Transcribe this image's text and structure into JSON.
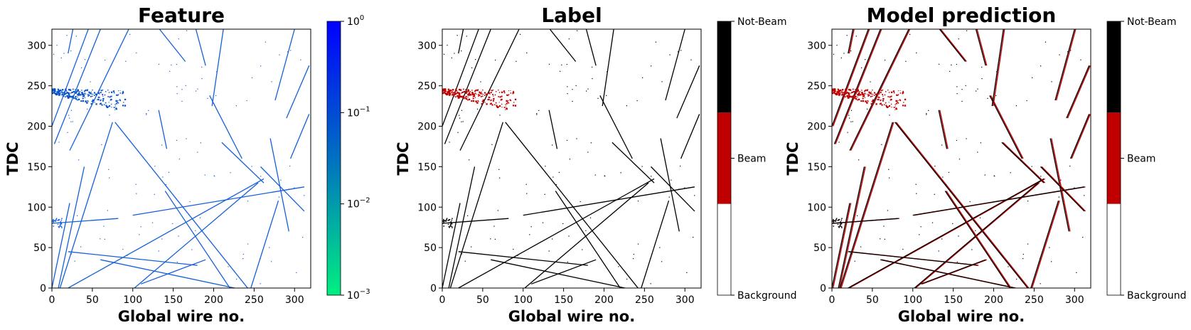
{
  "chart_data": [
    {
      "type": "heatmap",
      "title": "Feature",
      "xlabel": "Global wire no.",
      "ylabel": "TDC",
      "xlim": [
        0,
        320
      ],
      "ylim": [
        0,
        320
      ],
      "xticks": [
        "0",
        "50",
        "100",
        "150",
        "200",
        "250",
        "300"
      ],
      "yticks": [
        "0",
        "50",
        "100",
        "150",
        "200",
        "250",
        "300"
      ],
      "colorbar": {
        "scale": "log",
        "range": [
          0.001,
          1
        ],
        "ticks": [
          {
            "value": 0.001,
            "base": "10",
            "exp": "−3"
          },
          {
            "value": 0.01,
            "base": "10",
            "exp": "−2"
          },
          {
            "value": 0.1,
            "base": "10",
            "exp": "−1"
          },
          {
            "value": 1,
            "base": "10",
            "exp": "0"
          }
        ],
        "colors": [
          "#00f080",
          "#0070c0",
          "#0000ff"
        ]
      }
    },
    {
      "type": "heatmap",
      "title": "Label",
      "xlabel": "Global wire no.",
      "ylabel": "TDC",
      "xlim": [
        0,
        320
      ],
      "ylim": [
        0,
        320
      ],
      "xticks": [
        "0",
        "50",
        "100",
        "150",
        "200",
        "250",
        "300"
      ],
      "yticks": [
        "0",
        "50",
        "100",
        "150",
        "200",
        "250",
        "300"
      ],
      "colorbar": {
        "scale": "categorical",
        "categories": [
          "Background",
          "Beam",
          "Not-Beam"
        ],
        "colors": [
          "#ffffff",
          "#c00000",
          "#000000"
        ]
      }
    },
    {
      "type": "heatmap",
      "title": "Model prediction",
      "xlabel": "Global wire no.",
      "ylabel": "TDC",
      "xlim": [
        0,
        320
      ],
      "ylim": [
        0,
        320
      ],
      "xticks": [
        "0",
        "50",
        "100",
        "150",
        "200",
        "250",
        "300"
      ],
      "yticks": [
        "0",
        "50",
        "100",
        "150",
        "200",
        "250",
        "300"
      ],
      "colorbar": {
        "scale": "categorical",
        "categories": [
          "Background",
          "Beam",
          "Not-Beam"
        ],
        "colors": [
          "#ffffff",
          "#c00000",
          "#000000"
        ]
      }
    }
  ],
  "tracks": [
    [
      [
        0,
        200
      ],
      [
        45,
        320
      ]
    ],
    [
      [
        3,
        178
      ],
      [
        60,
        320
      ]
    ],
    [
      [
        22,
        170
      ],
      [
        95,
        320
      ]
    ],
    [
      [
        8,
        0
      ],
      [
        40,
        150
      ]
    ],
    [
      [
        0,
        0
      ],
      [
        22,
        105
      ]
    ],
    [
      [
        10,
        0
      ],
      [
        75,
        205
      ]
    ],
    [
      [
        78,
        205
      ],
      [
        242,
        0
      ]
    ],
    [
      [
        20,
        0
      ],
      [
        262,
        135
      ]
    ],
    [
      [
        102,
        0
      ],
      [
        255,
        130
      ]
    ],
    [
      [
        100,
        90
      ],
      [
        312,
        125
      ]
    ],
    [
      [
        20,
        45
      ],
      [
        180,
        28
      ]
    ],
    [
      [
        60,
        35
      ],
      [
        226,
        0
      ]
    ],
    [
      [
        110,
        5
      ],
      [
        190,
        35
      ]
    ],
    [
      [
        140,
        120
      ],
      [
        220,
        0
      ]
    ],
    [
      [
        210,
        180
      ],
      [
        262,
        130
      ]
    ],
    [
      [
        178,
        320
      ],
      [
        190,
        275
      ]
    ],
    [
      [
        270,
        185
      ],
      [
        293,
        70
      ]
    ],
    [
      [
        258,
        150
      ],
      [
        312,
        95
      ]
    ],
    [
      [
        195,
        238
      ],
      [
        235,
        160
      ]
    ],
    [
      [
        295,
        160
      ],
      [
        318,
        215
      ]
    ],
    [
      [
        318,
        275
      ],
      [
        290,
        210
      ]
    ],
    [
      [
        212,
        320
      ],
      [
        198,
        225
      ]
    ],
    [
      [
        300,
        320
      ],
      [
        276,
        232
      ]
    ],
    [
      [
        0,
        80
      ],
      [
        82,
        86
      ]
    ],
    [
      [
        132,
        220
      ],
      [
        142,
        172
      ]
    ],
    [
      [
        246,
        0
      ],
      [
        280,
        108
      ]
    ],
    [
      [
        165,
        280
      ],
      [
        125,
        330
      ]
    ],
    [
      [
        26,
        320
      ],
      [
        20,
        290
      ]
    ]
  ],
  "beam_cluster": {
    "x_range": [
      0,
      90
    ],
    "y_center": 244,
    "slope": -0.14
  }
}
